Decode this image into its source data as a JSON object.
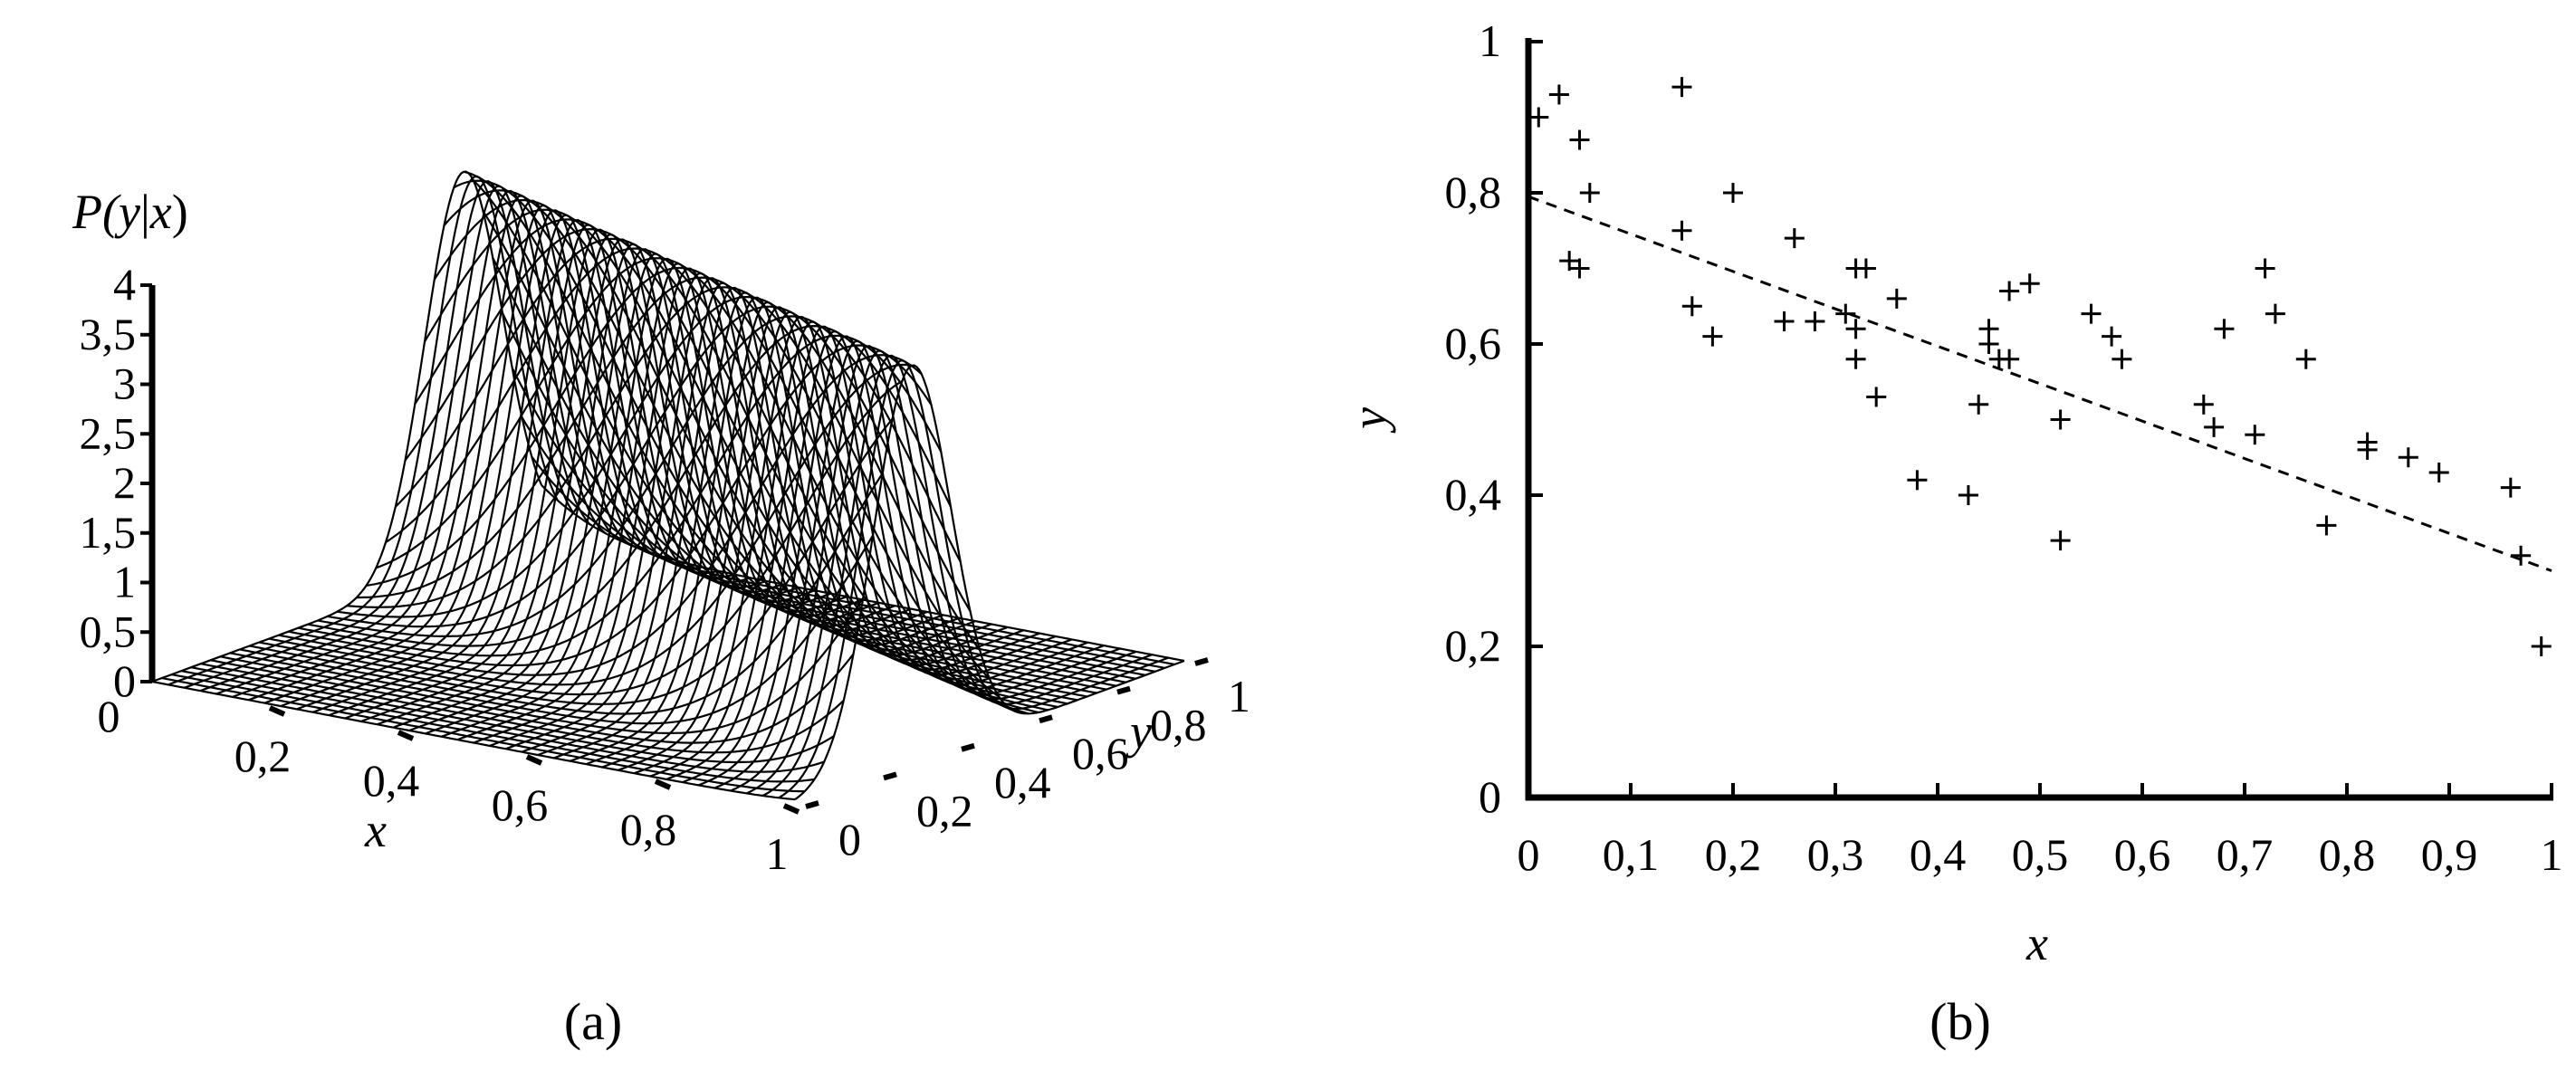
{
  "chart_data": [
    {
      "type": "surface",
      "caption": "(a)",
      "zlabel_parts": [
        "P(",
        "y",
        "|",
        "x",
        ")"
      ],
      "xlabel": "x",
      "ylabel": "y",
      "z_ticks": [
        "0",
        "0,5",
        "1",
        "1,5",
        "2",
        "2,5",
        "3",
        "3,5",
        "4"
      ],
      "x_ticks": [
        "0",
        "0,2",
        "0,4",
        "0,6",
        "0,8",
        "1"
      ],
      "y_ticks": [
        "0",
        "0,2",
        "0,4",
        "0,6",
        "0,8",
        "1"
      ],
      "xlim": [
        0,
        1
      ],
      "ylim": [
        0,
        1
      ],
      "zlim": [
        0,
        4
      ],
      "model": {
        "mean_intercept": 0.8,
        "mean_slope": -0.5,
        "sigma": 0.1
      }
    },
    {
      "type": "scatter",
      "caption": "(b)",
      "xlabel": "x",
      "ylabel": "y",
      "x_ticks": [
        "0",
        "0,1",
        "0,2",
        "0,3",
        "0,4",
        "0,5",
        "0,6",
        "0,7",
        "0,8",
        "0,9",
        "1"
      ],
      "y_ticks": [
        "0",
        "0,2",
        "0,4",
        "0,6",
        "0,8",
        "1"
      ],
      "xlim": [
        0,
        1
      ],
      "ylim": [
        0,
        1
      ],
      "grid": false,
      "marker": "+",
      "points": [
        [
          0.01,
          0.9
        ],
        [
          0.03,
          0.93
        ],
        [
          0.04,
          0.71
        ],
        [
          0.05,
          0.7
        ],
        [
          0.05,
          0.87
        ],
        [
          0.06,
          0.8
        ],
        [
          0.15,
          0.94
        ],
        [
          0.15,
          0.75
        ],
        [
          0.16,
          0.65
        ],
        [
          0.18,
          0.61
        ],
        [
          0.2,
          0.8
        ],
        [
          0.25,
          0.63
        ],
        [
          0.26,
          0.74
        ],
        [
          0.28,
          0.63
        ],
        [
          0.31,
          0.64
        ],
        [
          0.32,
          0.62
        ],
        [
          0.32,
          0.7
        ],
        [
          0.32,
          0.58
        ],
        [
          0.33,
          0.7
        ],
        [
          0.34,
          0.53
        ],
        [
          0.36,
          0.66
        ],
        [
          0.38,
          0.42
        ],
        [
          0.43,
          0.4
        ],
        [
          0.44,
          0.52
        ],
        [
          0.45,
          0.62
        ],
        [
          0.45,
          0.6
        ],
        [
          0.46,
          0.58
        ],
        [
          0.47,
          0.58
        ],
        [
          0.47,
          0.67
        ],
        [
          0.49,
          0.68
        ],
        [
          0.52,
          0.5
        ],
        [
          0.52,
          0.34
        ],
        [
          0.55,
          0.64
        ],
        [
          0.57,
          0.61
        ],
        [
          0.58,
          0.58
        ],
        [
          0.66,
          0.52
        ],
        [
          0.67,
          0.49
        ],
        [
          0.68,
          0.62
        ],
        [
          0.71,
          0.48
        ],
        [
          0.72,
          0.7
        ],
        [
          0.73,
          0.64
        ],
        [
          0.76,
          0.58
        ],
        [
          0.78,
          0.36
        ],
        [
          0.82,
          0.47
        ],
        [
          0.82,
          0.46
        ],
        [
          0.86,
          0.45
        ],
        [
          0.89,
          0.43
        ],
        [
          0.96,
          0.41
        ],
        [
          0.97,
          0.32
        ],
        [
          0.99,
          0.2
        ]
      ],
      "trend_line": {
        "style": "dashed",
        "x": [
          0.0,
          1.0
        ],
        "y": [
          0.795,
          0.3
        ]
      }
    }
  ]
}
